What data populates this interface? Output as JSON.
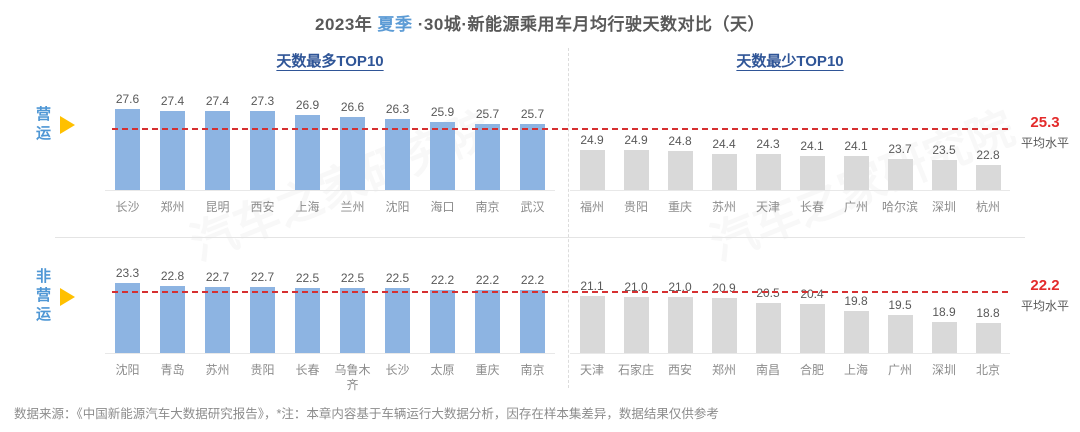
{
  "title": {
    "prefix": "2023年 ",
    "highlight": "夏季",
    "suffix": " ·30城·新能源乘用车月均行驶天数对比（天）"
  },
  "columns": {
    "left_header": "天数最多TOP10",
    "right_header": "天数最少TOP10"
  },
  "rows": [
    {
      "label": "营运",
      "average": "25.3",
      "average_caption": "平均水平"
    },
    {
      "label": "非营运",
      "average": "22.2",
      "average_caption": "平均水平"
    }
  ],
  "colors": {
    "bar_blue": "#8DB4E2",
    "bar_gray": "#D9D9D9",
    "avg_red": "#D63031",
    "header_blue": "#2F5597",
    "row_label_blue": "#4F97D5",
    "triangle_yellow": "#FFC000"
  },
  "watermark": "汽车之家研究院",
  "footer": "数据来源：《中国新能源汽车大数据研究报告》，*注：本章内容基于车辆运行大数据分析，因存在样本集差异，数据结果仅供参考",
  "chart_data": [
    {
      "type": "bar",
      "group": "营运",
      "panel": "天数最多TOP10",
      "categories": [
        "长沙",
        "郑州",
        "昆明",
        "西安",
        "上海",
        "兰州",
        "沈阳",
        "海口",
        "南京",
        "武汉"
      ],
      "values": [
        27.6,
        27.4,
        27.4,
        27.3,
        26.9,
        26.6,
        26.3,
        25.9,
        25.7,
        25.7
      ],
      "bar_color": "#8DB4E2",
      "average": 25.3,
      "average_label": "平均水平",
      "unit": "天"
    },
    {
      "type": "bar",
      "group": "营运",
      "panel": "天数最少TOP10",
      "categories": [
        "福州",
        "贵阳",
        "重庆",
        "苏州",
        "天津",
        "长春",
        "广州",
        "哈尔滨",
        "深圳",
        "杭州"
      ],
      "values": [
        24.9,
        24.9,
        24.8,
        24.4,
        24.3,
        24.1,
        24.1,
        23.7,
        23.5,
        22.8
      ],
      "bar_color": "#D9D9D9",
      "average": 25.3,
      "average_label": "平均水平",
      "unit": "天"
    },
    {
      "type": "bar",
      "group": "非营运",
      "panel": "天数最多TOP10",
      "categories": [
        "沈阳",
        "青岛",
        "苏州",
        "贵阳",
        "长春",
        "乌鲁木齐",
        "长沙",
        "太原",
        "重庆",
        "南京"
      ],
      "values": [
        23.3,
        22.8,
        22.7,
        22.7,
        22.5,
        22.5,
        22.5,
        22.2,
        22.2,
        22.2
      ],
      "bar_color": "#8DB4E2",
      "average": 22.2,
      "average_label": "平均水平",
      "unit": "天"
    },
    {
      "type": "bar",
      "group": "非营运",
      "panel": "天数最少TOP10",
      "categories": [
        "天津",
        "石家庄",
        "西安",
        "郑州",
        "南昌",
        "合肥",
        "上海",
        "广州",
        "深圳",
        "北京"
      ],
      "values": [
        21.1,
        21.0,
        21.0,
        20.9,
        20.5,
        20.4,
        19.8,
        19.5,
        18.9,
        18.8
      ],
      "bar_color": "#D9D9D9",
      "average": 22.2,
      "average_label": "平均水平",
      "unit": "天"
    }
  ]
}
